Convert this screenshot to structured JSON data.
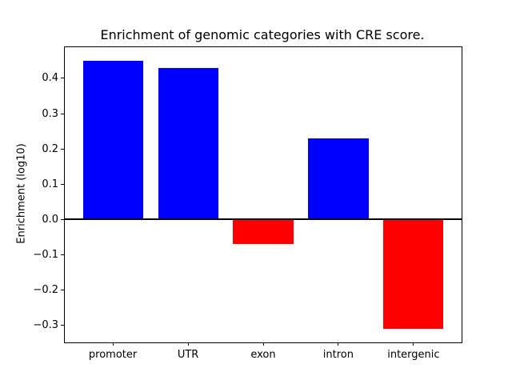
{
  "figure": {
    "background_color": "#ffffff",
    "axes_border_color": "#000000"
  },
  "chart_data": {
    "type": "bar",
    "title": "Enrichment of genomic categories with CRE score.",
    "xlabel": "",
    "ylabel": "Enrichment (log10)",
    "categories": [
      "promoter",
      "UTR",
      "exon",
      "intron",
      "intergenic"
    ],
    "values": [
      0.45,
      0.43,
      -0.07,
      0.23,
      -0.31
    ],
    "bar_colors": [
      "#0000ff",
      "#0000ff",
      "#ff0000",
      "#0000ff",
      "#ff0000"
    ],
    "positive_color": "#0000ff",
    "negative_color": "#ff0000",
    "ylim": [
      -0.348,
      0.488
    ],
    "xlim": [
      -0.64,
      4.64
    ],
    "bar_width_fraction": 0.8,
    "yticks": [
      {
        "value": 0.4,
        "label": "0.4"
      },
      {
        "value": 0.3,
        "label": "0.3"
      },
      {
        "value": 0.2,
        "label": "0.2"
      },
      {
        "value": 0.1,
        "label": "0.1"
      },
      {
        "value": 0.0,
        "label": "0.0"
      },
      {
        "value": -0.1,
        "label": "−0.1"
      },
      {
        "value": -0.2,
        "label": "−0.2"
      },
      {
        "value": -0.3,
        "label": "−0.3"
      }
    ],
    "zero_line": {
      "value": 0.0,
      "color": "#000000"
    },
    "grid": false,
    "legend": null
  }
}
